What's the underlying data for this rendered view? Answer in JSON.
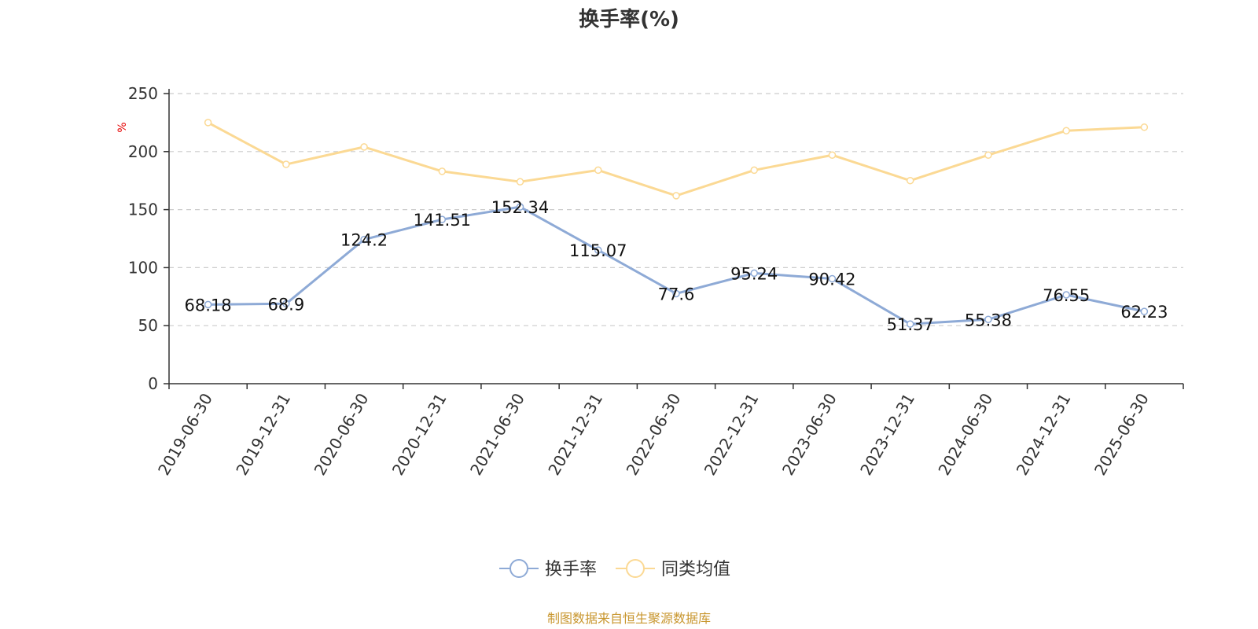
{
  "chart_data": {
    "type": "line",
    "title": "换手率(%)",
    "ylabel": "%",
    "ylim": [
      0,
      250
    ],
    "yticks": [
      0,
      50,
      100,
      150,
      200,
      250
    ],
    "grid": true,
    "legend_position": "bottom",
    "categories": [
      "2019-06-30",
      "2019-12-31",
      "2020-06-30",
      "2020-12-31",
      "2021-06-30",
      "2021-12-31",
      "2022-06-30",
      "2022-12-31",
      "2023-06-30",
      "2023-12-31",
      "2024-06-30",
      "2024-12-31",
      "2025-06-30"
    ],
    "series": [
      {
        "name": "换手率",
        "color": "#8eaad6",
        "show_labels": true,
        "values": [
          68.18,
          68.9,
          124.2,
          141.51,
          152.34,
          115.07,
          77.6,
          95.24,
          90.42,
          51.37,
          55.38,
          76.55,
          62.23
        ]
      },
      {
        "name": "同类均值",
        "color": "#fbd994",
        "show_labels": false,
        "values": [
          225,
          189,
          204,
          183,
          174,
          184,
          162,
          184,
          197,
          175,
          197,
          218,
          221
        ]
      }
    ],
    "source": "制图数据来自恒生聚源数据库"
  }
}
